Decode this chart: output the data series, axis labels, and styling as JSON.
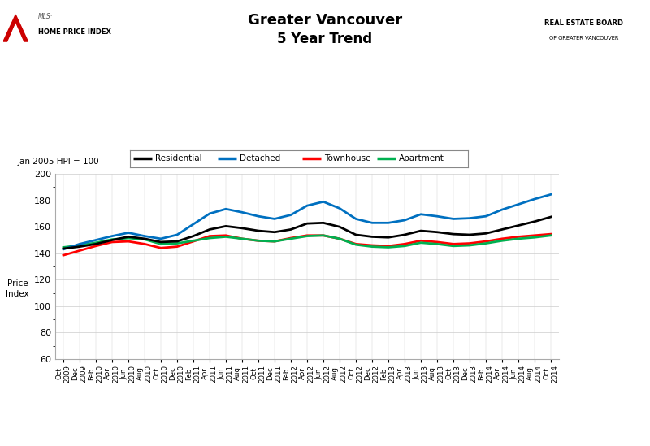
{
  "title_line1": "Greater Vancouver",
  "title_line2": "5 Year Trend",
  "note": "Jan 2005 HPI = 100",
  "ylim": [
    60,
    200
  ],
  "yticks": [
    60,
    80,
    100,
    120,
    140,
    160,
    180,
    200
  ],
  "background_color": "#ffffff",
  "x_labels": [
    "Oct\n2009",
    "Dec\n2009",
    "Feb\n2010",
    "Apr\n2010",
    "Jun\n2010",
    "Aug\n2010",
    "Oct\n2010",
    "Dec\n2010",
    "Feb\n2011",
    "Apr\n2011",
    "Jun\n2011",
    "Aug\n2011",
    "Oct\n2011",
    "Dec\n2011",
    "Feb\n2012",
    "Apr\n2012",
    "Jun\n2012",
    "Aug\n2012",
    "Oct\n2012",
    "Dec\n2012",
    "Feb\n2013",
    "Apr\n2013",
    "Jun\n2013",
    "Aug\n2013",
    "Oct\n2013",
    "Dec\n2013",
    "Feb\n2014",
    "Apr\n2014",
    "Jun\n2014",
    "Aug\n2014",
    "Oct\n2014"
  ],
  "residential": [
    143.5,
    145.0,
    147.0,
    150.0,
    152.5,
    151.0,
    148.5,
    149.0,
    153.0,
    158.0,
    160.5,
    159.0,
    157.0,
    156.0,
    158.0,
    162.5,
    163.0,
    160.0,
    154.0,
    152.5,
    152.0,
    154.0,
    157.0,
    156.0,
    154.5,
    154.0,
    155.0,
    158.0,
    161.0,
    164.0,
    167.5
  ],
  "detached": [
    143.0,
    147.0,
    150.0,
    153.0,
    155.5,
    153.0,
    151.0,
    154.0,
    162.0,
    170.0,
    173.5,
    171.0,
    168.0,
    166.0,
    169.0,
    176.0,
    179.0,
    174.0,
    166.0,
    163.0,
    163.0,
    165.0,
    169.5,
    168.0,
    166.0,
    166.5,
    168.0,
    173.0,
    177.0,
    181.0,
    184.5
  ],
  "townhouse": [
    138.5,
    142.0,
    145.5,
    148.5,
    149.0,
    147.0,
    144.0,
    145.0,
    149.0,
    153.0,
    153.5,
    151.0,
    149.5,
    149.0,
    151.5,
    153.5,
    153.5,
    151.0,
    147.0,
    146.0,
    145.5,
    147.0,
    149.5,
    148.5,
    147.0,
    147.5,
    149.0,
    151.0,
    152.5,
    153.5,
    154.5
  ],
  "apartment": [
    144.5,
    146.0,
    148.0,
    150.5,
    151.5,
    150.5,
    147.0,
    147.5,
    149.5,
    151.5,
    152.5,
    151.0,
    149.5,
    149.0,
    151.0,
    153.0,
    153.5,
    151.0,
    146.5,
    145.0,
    144.5,
    145.5,
    148.0,
    147.0,
    145.5,
    146.0,
    147.5,
    149.5,
    151.0,
    152.0,
    153.5
  ],
  "line_colors": {
    "residential": "#000000",
    "detached": "#0070c0",
    "townhouse": "#ff0000",
    "apartment": "#00b050"
  },
  "line_width": 2.0,
  "legend_entries": [
    {
      "label": "Residential",
      "color": "#000000"
    },
    {
      "label": "Detached",
      "color": "#0070c0"
    },
    {
      "label": "Townhouse",
      "color": "#ff0000"
    },
    {
      "label": "Apartment",
      "color": "#00b050"
    }
  ]
}
